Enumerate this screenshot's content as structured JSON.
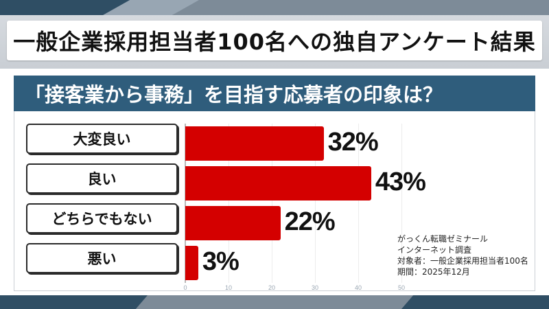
{
  "title": "一般企業採用担当者100名への独自アンケート結果",
  "question": "「接客業から事務」を目指す応募者の印象は？",
  "chart_data": {
    "type": "bar",
    "orientation": "horizontal",
    "categories": [
      "大変良い",
      "良い",
      "どちらでもない",
      "悪い"
    ],
    "values": [
      32,
      43,
      22,
      3
    ],
    "value_labels": [
      "32%",
      "43%",
      "22%",
      "3%"
    ],
    "unit": "%",
    "xlim": [
      0,
      50
    ],
    "x_ticks": [
      "0",
      "10",
      "20",
      "30",
      "40",
      "50"
    ],
    "bar_color": "#d40000"
  },
  "source": {
    "line1": "がっくん転職ゼミナール",
    "line2": "インターネット調査",
    "line3": "対象者：一般企業採用担当者100名",
    "line4": "期間：2025年12月"
  },
  "colors": {
    "banner": "#2f5d7c",
    "accent_dark": "#2f4e64",
    "bar": "#d40000"
  }
}
